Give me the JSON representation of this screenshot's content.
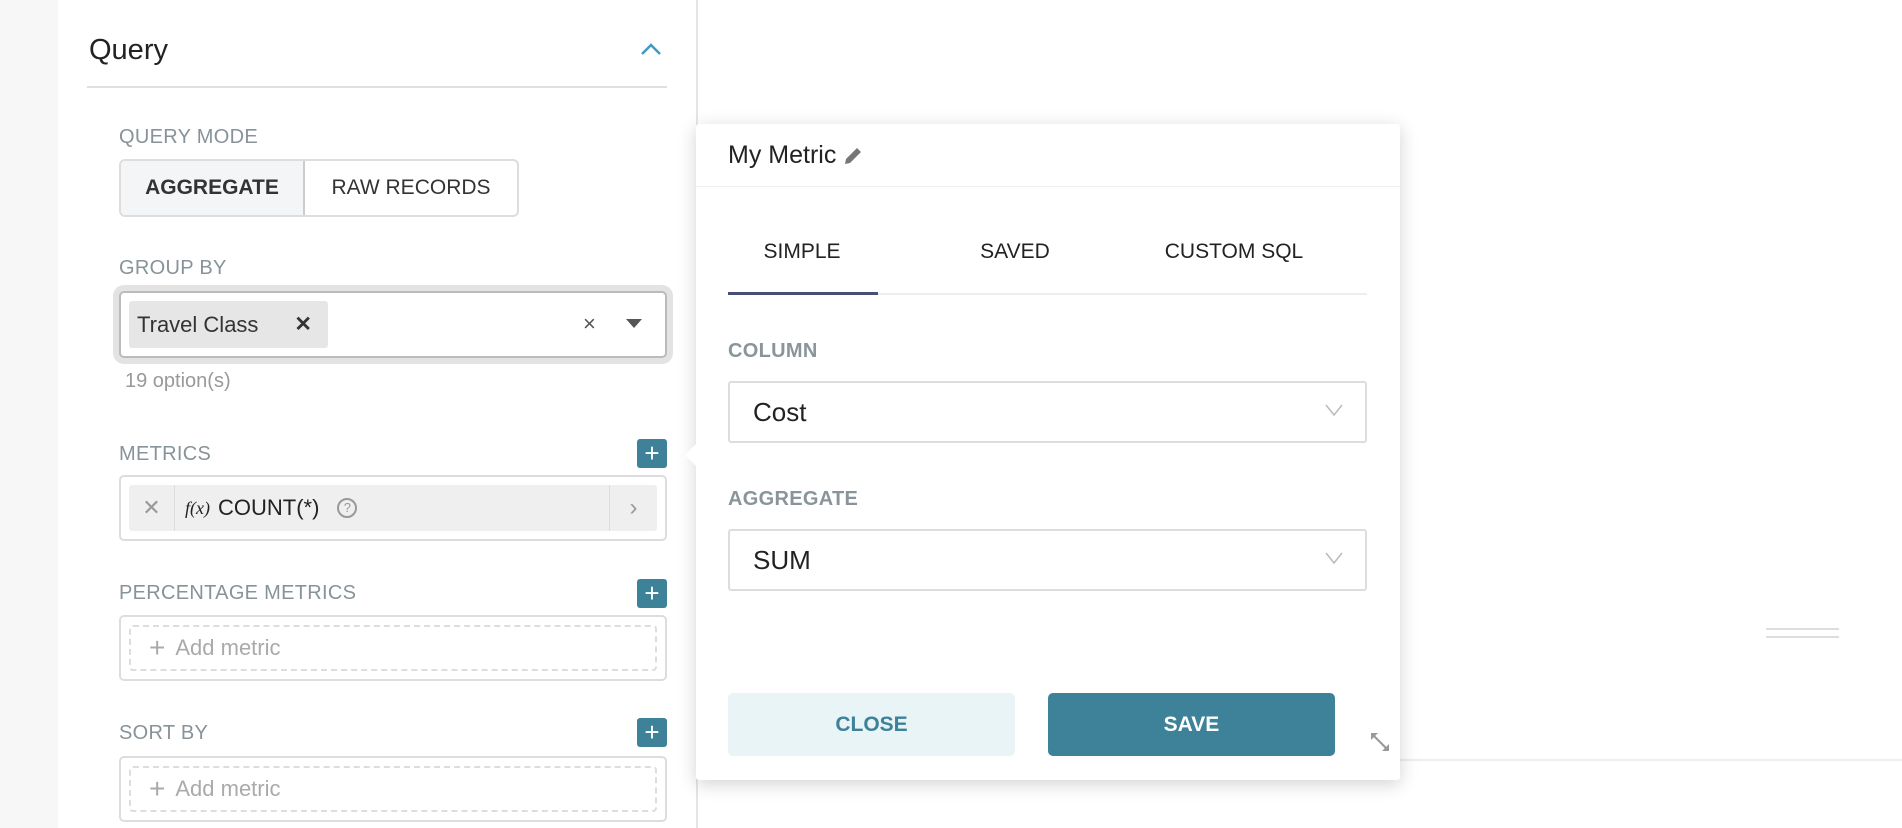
{
  "query": {
    "title": "Query",
    "query_mode_label": "QUERY MODE",
    "modes": [
      "AGGREGATE",
      "RAW RECORDS"
    ],
    "active_mode": "AGGREGATE",
    "group_by_label": "GROUP BY",
    "group_by_tags": [
      "Travel Class"
    ],
    "group_by_hint": "19 option(s)",
    "metrics_label": "METRICS",
    "metrics": [
      {
        "label": "COUNT(*)",
        "fx": "f(x)"
      }
    ],
    "percentage_metrics_label": "PERCENTAGE METRICS",
    "sort_by_label": "SORT BY",
    "add_metric": "Add metric"
  },
  "popover": {
    "title": "My Metric",
    "tabs": [
      "SIMPLE",
      "SAVED",
      "CUSTOM SQL"
    ],
    "active_tab": "SIMPLE",
    "column_label": "COLUMN",
    "column_value": "Cost",
    "aggregate_label": "AGGREGATE",
    "aggregate_value": "SUM",
    "close_label": "CLOSE",
    "save_label": "SAVE"
  },
  "colors": {
    "accent": "#3d8299",
    "close_bg": "#e9f4f7",
    "tab_underline": "#484e74",
    "label": "#879399"
  }
}
